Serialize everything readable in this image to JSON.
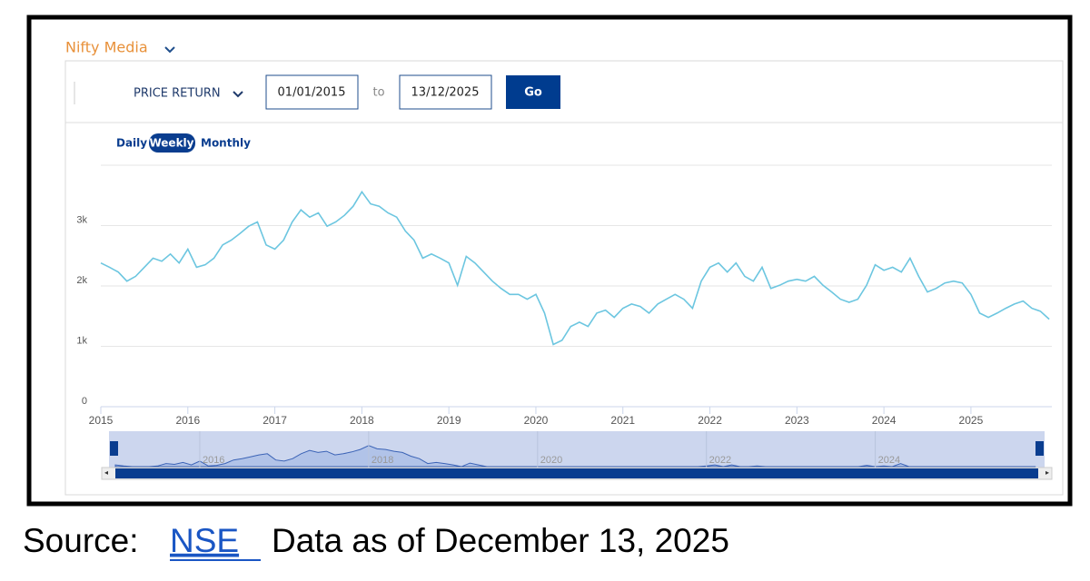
{
  "header": {
    "index_name": "Nifty Media"
  },
  "controls": {
    "return_type": "PRICE RETURN",
    "from_date": "01/01/2015",
    "to_label": "to",
    "to_date": "13/12/2025",
    "go": "Go",
    "periods": [
      "Daily",
      "Weekly",
      "Monthly"
    ]
  },
  "chart_data": {
    "type": "line",
    "color": "#6cc6e0",
    "grid": true,
    "xlim": [
      2015,
      2025.93
    ],
    "xticks": [
      2015,
      2016,
      2017,
      2018,
      2019,
      2020,
      2021,
      2022,
      2023,
      2024,
      2025
    ],
    "ylim": [
      0,
      4000
    ],
    "yticks": [
      0,
      {
        "value": 1000,
        "label": "1k"
      },
      {
        "value": 2000,
        "label": "2k"
      },
      {
        "value": 3000,
        "label": "3k"
      }
    ],
    "x": [
      2015.0,
      2015.1,
      2015.2,
      2015.3,
      2015.4,
      2015.5,
      2015.6,
      2015.7,
      2015.8,
      2015.9,
      2016.0,
      2016.1,
      2016.2,
      2016.3,
      2016.4,
      2016.5,
      2016.6,
      2016.7,
      2016.8,
      2016.9,
      2017.0,
      2017.1,
      2017.2,
      2017.3,
      2017.4,
      2017.5,
      2017.6,
      2017.7,
      2017.8,
      2017.9,
      2018.0,
      2018.1,
      2018.2,
      2018.3,
      2018.4,
      2018.5,
      2018.6,
      2018.7,
      2018.8,
      2018.9,
      2019.0,
      2019.1,
      2019.2,
      2019.3,
      2019.4,
      2019.5,
      2019.6,
      2019.7,
      2019.8,
      2019.9,
      2020.0,
      2020.1,
      2020.2,
      2020.3,
      2020.4,
      2020.5,
      2020.6,
      2020.7,
      2020.8,
      2020.9,
      2021.0,
      2021.1,
      2021.2,
      2021.3,
      2021.4,
      2021.5,
      2021.6,
      2021.7,
      2021.8,
      2021.9,
      2022.0,
      2022.1,
      2022.2,
      2022.3,
      2022.4,
      2022.5,
      2022.6,
      2022.7,
      2022.8,
      2022.9,
      2023.0,
      2023.1,
      2023.2,
      2023.3,
      2023.4,
      2023.5,
      2023.6,
      2023.7,
      2023.8,
      2023.9,
      2024.0,
      2024.1,
      2024.2,
      2024.3,
      2024.4,
      2024.5,
      2024.6,
      2024.7,
      2024.8,
      2024.9,
      2025.0,
      2025.1,
      2025.2,
      2025.3,
      2025.4,
      2025.5,
      2025.6,
      2025.7,
      2025.8,
      2025.9
    ],
    "values": [
      2380,
      2310,
      2230,
      2080,
      2160,
      2310,
      2460,
      2410,
      2530,
      2380,
      2610,
      2310,
      2350,
      2460,
      2680,
      2760,
      2870,
      2990,
      3060,
      2680,
      2610,
      2760,
      3060,
      3260,
      3140,
      3210,
      2990,
      3060,
      3170,
      3320,
      3560,
      3360,
      3320,
      3210,
      3140,
      2910,
      2760,
      2460,
      2530,
      2460,
      2380,
      2010,
      2490,
      2380,
      2230,
      2080,
      1960,
      1860,
      1860,
      1780,
      1860,
      1550,
      1030,
      1100,
      1330,
      1400,
      1330,
      1550,
      1600,
      1480,
      1630,
      1700,
      1660,
      1550,
      1700,
      1780,
      1860,
      1780,
      1630,
      2080,
      2310,
      2380,
      2230,
      2380,
      2160,
      2080,
      2310,
      1960,
      2010,
      2080,
      2110,
      2080,
      2160,
      2010,
      1900,
      1780,
      1730,
      1780,
      2010,
      2350,
      2260,
      2310,
      2230,
      2460,
      2160,
      1900,
      1960,
      2050,
      2080,
      2050,
      1860,
      1550,
      1480,
      1550,
      1630,
      1700,
      1750,
      1630,
      1580,
      1450
    ]
  },
  "navigator": {
    "labels": [
      2016,
      2018,
      2020,
      2022,
      2024
    ]
  },
  "footer": {
    "prefix": "Source:",
    "link": "NSE",
    "note": "Data as of December 13, 2025"
  }
}
